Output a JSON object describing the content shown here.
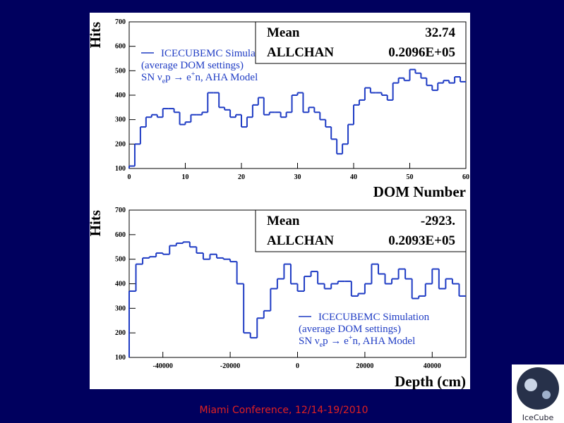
{
  "chart_data": [
    {
      "type": "histogram",
      "ylabel": "Hits",
      "xlabel": "DOM Number",
      "bins": [
        0,
        1,
        2,
        3,
        4,
        5,
        6,
        7,
        8,
        9,
        10,
        11,
        12,
        13,
        14,
        15,
        16,
        17,
        18,
        19,
        20,
        21,
        22,
        23,
        24,
        25,
        26,
        27,
        28,
        29,
        30,
        31,
        32,
        33,
        34,
        35,
        36,
        37,
        38,
        39,
        40,
        41,
        42,
        43,
        44,
        45,
        46,
        47,
        48,
        49,
        50,
        51,
        52,
        53,
        54,
        55,
        56,
        57,
        58,
        59,
        60
      ],
      "series": [
        {
          "name": "ICECUBEMC Simulation",
          "color": "#1f3cc4",
          "values": [
            110,
            200,
            270,
            310,
            320,
            310,
            345,
            345,
            330,
            280,
            290,
            320,
            320,
            330,
            410,
            410,
            350,
            340,
            310,
            320,
            270,
            310,
            360,
            390,
            320,
            330,
            330,
            310,
            330,
            400,
            410,
            330,
            350,
            330,
            300,
            270,
            220,
            160,
            200,
            280,
            360,
            380,
            430,
            410,
            410,
            400,
            380,
            450,
            470,
            460,
            505,
            490,
            470,
            440,
            420,
            450,
            460,
            450,
            475,
            455
          ]
        }
      ],
      "legend_lines": [
        "(average DOM settings)"
      ],
      "legend_formula": {
        "pre": "SN ν",
        "sub": "e",
        "mid": "p → e",
        "sup": "+",
        "post": "n, AHA Model"
      },
      "stats": [
        {
          "label": "Mean",
          "value": "32.74"
        },
        {
          "label": "ALLCHAN",
          "value": "0.2096E+05"
        }
      ],
      "xlim": [
        0,
        60
      ],
      "ylim": [
        100,
        700
      ],
      "xticks": [
        0,
        10,
        20,
        30,
        40,
        50,
        60
      ],
      "yticks": [
        100,
        200,
        300,
        400,
        500,
        600,
        700
      ]
    },
    {
      "type": "histogram",
      "ylabel": "Hits",
      "xlabel": "Depth (cm)",
      "bins": [
        -50000,
        -48000,
        -46000,
        -44000,
        -42000,
        -40000,
        -38000,
        -36000,
        -34000,
        -32000,
        -30000,
        -28000,
        -26000,
        -24000,
        -22000,
        -20000,
        -18000,
        -16000,
        -14000,
        -12000,
        -10000,
        -8000,
        -6000,
        -4000,
        -2000,
        0,
        2000,
        4000,
        6000,
        8000,
        10000,
        12000,
        14000,
        16000,
        18000,
        20000,
        22000,
        24000,
        26000,
        28000,
        30000,
        32000,
        34000,
        36000,
        38000,
        40000,
        42000,
        44000,
        46000,
        48000,
        50000
      ],
      "series": [
        {
          "name": "ICECUBEMC Simulation",
          "color": "#1f3cc4",
          "values": [
            370,
            480,
            505,
            510,
            525,
            520,
            555,
            565,
            570,
            550,
            525,
            500,
            520,
            505,
            500,
            490,
            400,
            200,
            180,
            260,
            290,
            380,
            420,
            480,
            400,
            370,
            430,
            450,
            400,
            380,
            400,
            410,
            410,
            350,
            360,
            400,
            480,
            440,
            400,
            420,
            460,
            420,
            340,
            350,
            400,
            460,
            380,
            420,
            400,
            350
          ]
        }
      ],
      "legend_lines": [
        "(average DOM settings)"
      ],
      "legend_formula": {
        "pre": "SN ν",
        "sub": "e",
        "mid": "p → e",
        "sup": "+",
        "post": "n, AHA Model"
      },
      "stats": [
        {
          "label": "Mean",
          "value": "-2923."
        },
        {
          "label": "ALLCHAN",
          "value": "0.2093E+05"
        }
      ],
      "xlim": [
        -50000,
        50000
      ],
      "ylim": [
        100,
        700
      ],
      "xticks": [
        -40000,
        -20000,
        0,
        20000,
        40000
      ],
      "yticks": [
        100,
        200,
        300,
        400,
        500,
        600,
        700
      ]
    }
  ],
  "footer": "Miami Conference, 12/14-19/2010",
  "logo": "IceCube"
}
